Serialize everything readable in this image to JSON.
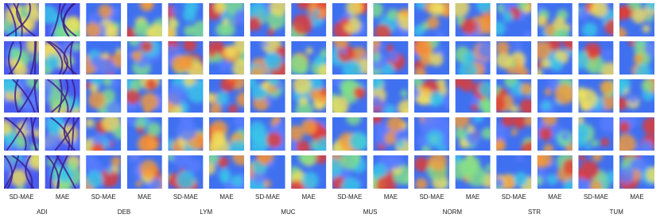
{
  "columns": [
    "SD-MAE",
    "MAE",
    "SD-MAE",
    "MAE",
    "SD-MAE",
    "MAE",
    "SD-MAE",
    "MAE",
    "SD-MAE",
    "MAE",
    "SD-MAE",
    "MAE",
    "SD-MAE",
    "MAE",
    "SD-MAE",
    "MAE"
  ],
  "groups": [
    "ADI",
    "DEB",
    "LYM",
    "MUC",
    "MUS",
    "NORM",
    "STR",
    "TUM"
  ]
}
